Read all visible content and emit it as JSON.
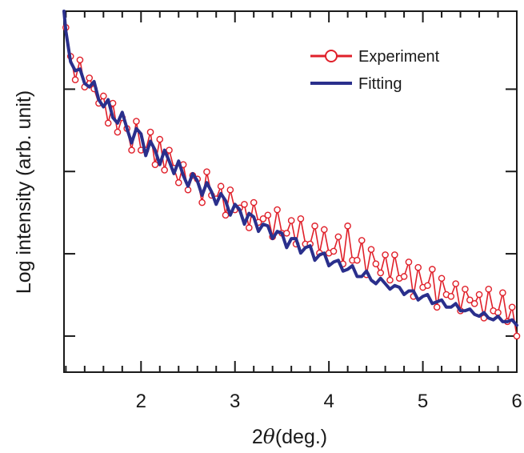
{
  "chart_data": {
    "type": "line",
    "title": "",
    "xlabel_prefix": "2",
    "xlabel_symbol": "θ",
    "xlabel_suffix": "(deg.)",
    "ylabel": "Log intensity (arb. unit)",
    "xlim": [
      1.18,
      6.0
    ],
    "ylim": [
      0,
      1
    ],
    "x_tick_labels": [
      "2",
      "3",
      "4",
      "5",
      "6"
    ],
    "x_major_ticks": [
      2,
      3,
      4,
      5,
      6
    ],
    "x_minor_step": 0.2,
    "y_major_ticks": [
      0.1,
      0.328,
      0.556,
      0.784
    ],
    "y_tick_labels_shown": false,
    "legend_position": "top-right",
    "grid": false,
    "colors": {
      "experiment": "#e0202a",
      "fitting": "#2a2f8c"
    },
    "series": [
      {
        "name": "Experiment",
        "marker": "open-circle",
        "x": [
          1.2,
          1.25,
          1.3,
          1.35,
          1.4,
          1.45,
          1.5,
          1.55,
          1.6,
          1.65,
          1.7,
          1.75,
          1.8,
          1.85,
          1.9,
          1.95,
          2.0,
          2.05,
          2.1,
          2.15,
          2.2,
          2.25,
          2.3,
          2.35,
          2.4,
          2.45,
          2.5,
          2.55,
          2.6,
          2.65,
          2.7,
          2.75,
          2.8,
          2.85,
          2.9,
          2.95,
          3.0,
          3.05,
          3.1,
          3.15,
          3.2,
          3.25,
          3.3,
          3.35,
          3.4,
          3.45,
          3.5,
          3.55,
          3.6,
          3.65,
          3.7,
          3.75,
          3.8,
          3.85,
          3.9,
          3.95,
          4.0,
          4.05,
          4.1,
          4.15,
          4.2,
          4.25,
          4.3,
          4.35,
          4.4,
          4.45,
          4.5,
          4.55,
          4.6,
          4.65,
          4.7,
          4.75,
          4.8,
          4.85,
          4.9,
          4.95,
          5.0,
          5.05,
          5.1,
          5.15,
          5.2,
          5.25,
          5.3,
          5.35,
          5.4,
          5.45,
          5.5,
          5.55,
          5.6,
          5.65,
          5.7,
          5.75,
          5.8,
          5.85,
          5.9,
          5.95,
          6.0
        ],
        "y": [
          0.955,
          0.875,
          0.81,
          0.865,
          0.79,
          0.815,
          0.785,
          0.745,
          0.765,
          0.69,
          0.745,
          0.665,
          0.705,
          0.675,
          0.615,
          0.695,
          0.615,
          0.615,
          0.665,
          0.575,
          0.645,
          0.56,
          0.615,
          0.565,
          0.525,
          0.575,
          0.505,
          0.545,
          0.535,
          0.47,
          0.555,
          0.49,
          0.48,
          0.515,
          0.435,
          0.505,
          0.45,
          0.455,
          0.465,
          0.4,
          0.47,
          0.415,
          0.425,
          0.435,
          0.375,
          0.45,
          0.385,
          0.385,
          0.42,
          0.355,
          0.425,
          0.355,
          0.355,
          0.405,
          0.33,
          0.395,
          0.33,
          0.335,
          0.375,
          0.3,
          0.405,
          0.31,
          0.31,
          0.365,
          0.27,
          0.34,
          0.3,
          0.275,
          0.325,
          0.255,
          0.325,
          0.26,
          0.265,
          0.305,
          0.21,
          0.29,
          0.235,
          0.24,
          0.285,
          0.18,
          0.26,
          0.215,
          0.21,
          0.245,
          0.17,
          0.23,
          0.2,
          0.19,
          0.215,
          0.15,
          0.23,
          0.17,
          0.165,
          0.22,
          0.14,
          0.18,
          0.1
        ]
      },
      {
        "name": "Fitting",
        "x": [
          1.18,
          1.2,
          1.25,
          1.3,
          1.35,
          1.4,
          1.45,
          1.5,
          1.55,
          1.6,
          1.65,
          1.7,
          1.75,
          1.8,
          1.85,
          1.9,
          1.95,
          2.0,
          2.05,
          2.1,
          2.15,
          2.2,
          2.25,
          2.3,
          2.35,
          2.4,
          2.45,
          2.5,
          2.55,
          2.6,
          2.65,
          2.7,
          2.75,
          2.8,
          2.85,
          2.9,
          2.95,
          3.0,
          3.05,
          3.1,
          3.15,
          3.2,
          3.25,
          3.3,
          3.35,
          3.4,
          3.45,
          3.5,
          3.55,
          3.6,
          3.65,
          3.7,
          3.75,
          3.8,
          3.85,
          3.9,
          3.95,
          4.0,
          4.05,
          4.1,
          4.15,
          4.2,
          4.25,
          4.3,
          4.35,
          4.4,
          4.45,
          4.5,
          4.55,
          4.6,
          4.65,
          4.7,
          4.75,
          4.8,
          4.85,
          4.9,
          4.95,
          5.0,
          5.05,
          5.1,
          5.15,
          5.2,
          5.25,
          5.3,
          5.35,
          5.4,
          5.45,
          5.5,
          5.55,
          5.6,
          5.65,
          5.7,
          5.75,
          5.8,
          5.85,
          5.9,
          5.95,
          6.0
        ],
        "y": [
          1.0,
          0.945,
          0.86,
          0.835,
          0.84,
          0.8,
          0.79,
          0.805,
          0.755,
          0.735,
          0.755,
          0.705,
          0.69,
          0.72,
          0.675,
          0.635,
          0.675,
          0.66,
          0.6,
          0.64,
          0.615,
          0.575,
          0.615,
          0.585,
          0.55,
          0.585,
          0.545,
          0.515,
          0.55,
          0.53,
          0.49,
          0.525,
          0.5,
          0.465,
          0.495,
          0.475,
          0.435,
          0.465,
          0.45,
          0.41,
          0.44,
          0.43,
          0.39,
          0.41,
          0.405,
          0.37,
          0.39,
          0.385,
          0.345,
          0.37,
          0.37,
          0.33,
          0.345,
          0.35,
          0.31,
          0.325,
          0.33,
          0.295,
          0.305,
          0.31,
          0.28,
          0.285,
          0.295,
          0.265,
          0.265,
          0.28,
          0.255,
          0.245,
          0.26,
          0.245,
          0.23,
          0.24,
          0.235,
          0.215,
          0.225,
          0.225,
          0.2,
          0.21,
          0.215,
          0.19,
          0.195,
          0.2,
          0.18,
          0.18,
          0.19,
          0.17,
          0.17,
          0.175,
          0.16,
          0.155,
          0.165,
          0.15,
          0.145,
          0.155,
          0.14,
          0.14,
          0.145,
          0.13
        ]
      }
    ]
  }
}
